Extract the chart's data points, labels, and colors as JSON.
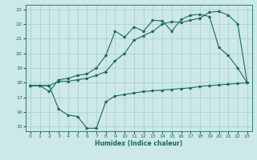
{
  "xlabel": "Humidex (Indice chaleur)",
  "bg_color": "#cce8e8",
  "grid_color": "#aacccc",
  "line_color": "#1a6b5a",
  "xlim": [
    -0.5,
    23.5
  ],
  "ylim": [
    14.7,
    23.3
  ],
  "xticks": [
    0,
    1,
    2,
    3,
    4,
    5,
    6,
    7,
    8,
    9,
    10,
    11,
    12,
    13,
    14,
    15,
    16,
    17,
    18,
    19,
    20,
    21,
    22,
    23
  ],
  "yticks": [
    15,
    16,
    17,
    18,
    19,
    20,
    21,
    22,
    23
  ],
  "line1_x": [
    0,
    1,
    2,
    3,
    4,
    5,
    6,
    7,
    8,
    9,
    10,
    11,
    12,
    13,
    14,
    15,
    16,
    17,
    18,
    19,
    20,
    21,
    22,
    23
  ],
  "line1_y": [
    17.8,
    17.8,
    17.4,
    18.2,
    18.3,
    18.5,
    18.6,
    19.0,
    19.85,
    21.5,
    21.1,
    21.8,
    21.5,
    22.25,
    22.2,
    21.5,
    22.3,
    22.6,
    22.65,
    22.5,
    20.4,
    19.85,
    19.0,
    18.0
  ],
  "line2_x": [
    0,
    1,
    2,
    3,
    4,
    5,
    6,
    7,
    8,
    9,
    10,
    11,
    12,
    13,
    14,
    15,
    16,
    17,
    18,
    19,
    20,
    21,
    22,
    23
  ],
  "line2_y": [
    17.8,
    17.8,
    17.8,
    18.1,
    18.1,
    18.2,
    18.3,
    18.5,
    18.75,
    19.5,
    20.0,
    20.9,
    21.2,
    21.5,
    22.0,
    22.15,
    22.1,
    22.25,
    22.4,
    22.8,
    22.85,
    22.6,
    22.0,
    18.0
  ],
  "line3_x": [
    0,
    1,
    2,
    3,
    4,
    5,
    6,
    7,
    8,
    9,
    10,
    11,
    12,
    13,
    14,
    15,
    16,
    17,
    18,
    19,
    20,
    21,
    22,
    23
  ],
  "line3_y": [
    17.8,
    17.8,
    17.8,
    16.2,
    15.8,
    15.7,
    14.9,
    14.9,
    16.7,
    17.1,
    17.2,
    17.3,
    17.4,
    17.45,
    17.5,
    17.55,
    17.6,
    17.65,
    17.75,
    17.8,
    17.85,
    17.9,
    17.95,
    18.0
  ],
  "xlabel_fontsize": 5.5,
  "tick_fontsize": 4.5,
  "lw": 0.8,
  "ms": 1.8
}
